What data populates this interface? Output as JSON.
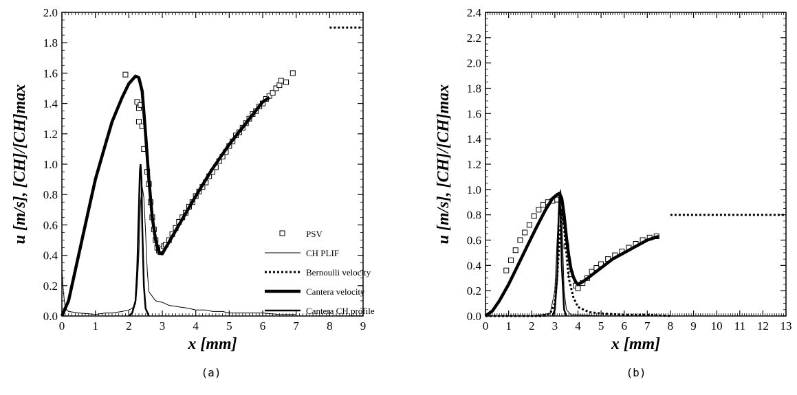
{
  "chart_data": [
    {
      "type": "line",
      "caption": "(a)",
      "xlabel": "x [mm]",
      "ylabel": "u [m/s], [CH]/[CH]max",
      "xlim": [
        0,
        9
      ],
      "ylim": [
        0,
        2.0
      ],
      "x_ticks": [
        "0",
        "1",
        "2",
        "3",
        "4",
        "5",
        "6",
        "7",
        "8",
        "9"
      ],
      "y_ticks": [
        "0.0",
        "0.2",
        "0.4",
        "0.6",
        "0.8",
        "1.0",
        "1.2",
        "1.4",
        "1.6",
        "1.8",
        "2.0"
      ],
      "legend_position": "center-right",
      "series": [
        {
          "name": "PSV",
          "style": "markers",
          "x": [
            1.9,
            2.25,
            2.3,
            2.3,
            2.35,
            2.4,
            2.45,
            2.55,
            2.6,
            2.65,
            2.7,
            2.75,
            2.8,
            2.85,
            2.9,
            2.95,
            3.0,
            3.05,
            3.1,
            3.2,
            3.3,
            3.4,
            3.5,
            3.6,
            3.7,
            3.8,
            3.9,
            4.0,
            4.1,
            4.2,
            4.3,
            4.4,
            4.5,
            4.6,
            4.7,
            4.8,
            4.9,
            5.0,
            5.1,
            5.2,
            5.3,
            5.4,
            5.5,
            5.6,
            5.7,
            5.8,
            5.9,
            6.0,
            6.1,
            6.2,
            6.3,
            6.4,
            6.5,
            6.55,
            6.7,
            6.9
          ],
          "y": [
            1.59,
            1.41,
            1.37,
            1.28,
            1.39,
            1.25,
            1.1,
            0.95,
            0.87,
            0.75,
            0.65,
            0.57,
            0.5,
            0.45,
            0.43,
            0.42,
            0.44,
            0.46,
            0.47,
            0.5,
            0.54,
            0.58,
            0.62,
            0.65,
            0.68,
            0.72,
            0.75,
            0.79,
            0.82,
            0.85,
            0.88,
            0.92,
            0.95,
            0.98,
            1.02,
            1.05,
            1.08,
            1.12,
            1.15,
            1.19,
            1.21,
            1.24,
            1.27,
            1.3,
            1.33,
            1.35,
            1.38,
            1.4,
            1.43,
            1.45,
            1.47,
            1.5,
            1.52,
            1.55,
            1.54,
            1.6
          ]
        },
        {
          "name": "CH PLIF",
          "style": "thin",
          "x": [
            0,
            0.05,
            0.1,
            0.2,
            0.5,
            0.8,
            1.0,
            1.3,
            1.5,
            1.8,
            2.0,
            2.1,
            2.2,
            2.25,
            2.3,
            2.35,
            2.4,
            2.45,
            2.5,
            2.55,
            2.6,
            2.7,
            2.8,
            3.0,
            3.2,
            3.5,
            3.8,
            4.0,
            4.3,
            4.5,
            4.8,
            5.0,
            5.5,
            6.0,
            6.5,
            7.0
          ],
          "y": [
            0.3,
            0.15,
            0.05,
            0.03,
            0.02,
            0.015,
            0.01,
            0.02,
            0.02,
            0.03,
            0.04,
            0.05,
            0.08,
            0.2,
            0.4,
            0.75,
            0.85,
            0.78,
            0.55,
            0.3,
            0.16,
            0.13,
            0.1,
            0.09,
            0.07,
            0.06,
            0.05,
            0.04,
            0.04,
            0.03,
            0.03,
            0.02,
            0.02,
            0.02,
            0.01,
            0.01
          ]
        },
        {
          "name": "Bernoulli velocity",
          "style": "dashed",
          "x": [
            8.0,
            9.0
          ],
          "y": [
            1.9,
            1.9
          ]
        },
        {
          "name": "Cantera velocity",
          "style": "thick",
          "x": [
            0,
            0.2,
            0.5,
            0.8,
            1.0,
            1.3,
            1.5,
            1.8,
            2.0,
            2.2,
            2.3,
            2.4,
            2.5,
            2.6,
            2.7,
            2.8,
            2.9,
            3.0,
            3.5,
            4.0,
            4.5,
            5.0,
            5.5,
            6.0,
            6.2
          ],
          "y": [
            0,
            0.1,
            0.4,
            0.7,
            0.9,
            1.13,
            1.28,
            1.44,
            1.53,
            1.58,
            1.57,
            1.48,
            1.2,
            0.9,
            0.65,
            0.5,
            0.42,
            0.41,
            0.6,
            0.79,
            0.97,
            1.13,
            1.27,
            1.41,
            1.44
          ]
        },
        {
          "name": "Cantera CH profile",
          "style": "medium",
          "x": [
            2.0,
            2.1,
            2.2,
            2.25,
            2.3,
            2.33,
            2.35,
            2.38,
            2.4,
            2.45,
            2.5,
            2.6
          ],
          "y": [
            0,
            0.02,
            0.1,
            0.3,
            0.7,
            0.95,
            1.0,
            0.9,
            0.6,
            0.2,
            0.05,
            0
          ]
        }
      ]
    },
    {
      "type": "line",
      "caption": "(b)",
      "xlabel": "x [mm]",
      "ylabel": "u [m/s], [CH]/[CH]max",
      "xlim": [
        0,
        13
      ],
      "ylim": [
        0,
        2.4
      ],
      "x_ticks": [
        "0",
        "1",
        "2",
        "3",
        "4",
        "5",
        "6",
        "7",
        "8",
        "9",
        "10",
        "11",
        "12",
        "13"
      ],
      "y_ticks": [
        "0.0",
        "0.2",
        "0.4",
        "0.6",
        "0.8",
        "1.0",
        "1.2",
        "1.4",
        "1.6",
        "1.8",
        "2.0",
        "2.2",
        "2.4"
      ],
      "series": [
        {
          "name": "PSV",
          "style": "markers",
          "x": [
            0.9,
            1.1,
            1.3,
            1.5,
            1.7,
            1.9,
            2.1,
            2.3,
            2.5,
            2.7,
            2.9,
            3.1,
            3.3,
            3.5,
            3.7,
            3.9,
            4.0,
            4.2,
            4.4,
            4.6,
            4.8,
            5.0,
            5.3,
            5.6,
            5.9,
            6.2,
            6.5,
            6.8,
            7.1,
            7.4
          ],
          "y": [
            0.36,
            0.44,
            0.52,
            0.6,
            0.66,
            0.72,
            0.79,
            0.84,
            0.88,
            0.9,
            0.91,
            0.92,
            0.82,
            0.55,
            0.33,
            0.24,
            0.22,
            0.26,
            0.3,
            0.35,
            0.38,
            0.41,
            0.45,
            0.48,
            0.51,
            0.54,
            0.57,
            0.6,
            0.62,
            0.63
          ]
        },
        {
          "name": "CH PLIF",
          "style": "thin",
          "x": [
            0,
            1,
            2,
            2.8,
            3.0,
            3.1,
            3.2,
            3.25,
            3.3,
            3.35,
            3.4,
            3.5,
            3.7,
            4.0,
            5.0,
            6.0,
            7.0
          ],
          "y": [
            0,
            0,
            0,
            0.02,
            0.2,
            0.6,
            0.95,
            1.0,
            0.9,
            0.5,
            0.2,
            0.05,
            0.01,
            0.01,
            0,
            0,
            0
          ]
        },
        {
          "name": "Bernoulli velocity",
          "style": "dashed",
          "x": [
            0,
            2.5,
            2.8,
            3.0,
            3.1,
            3.2,
            3.3,
            3.4,
            3.5,
            3.6,
            3.8,
            4.0,
            4.5,
            5.0,
            6.0,
            7.0,
            8.0
          ],
          "y": [
            0,
            0,
            0.02,
            0.1,
            0.3,
            0.6,
            0.85,
            0.7,
            0.5,
            0.3,
            0.15,
            0.07,
            0.03,
            0.02,
            0.01,
            0.01,
            0
          ]
        },
        {
          "name": "Bernoulli velocity",
          "style": "dashed",
          "x": [
            8.0,
            13.0
          ],
          "y": [
            0.8,
            0.8
          ]
        },
        {
          "name": "Cantera velocity",
          "style": "thick",
          "x": [
            0,
            0.3,
            0.6,
            1.0,
            1.4,
            1.8,
            2.2,
            2.6,
            2.9,
            3.1,
            3.2,
            3.3,
            3.4,
            3.5,
            3.6,
            3.7,
            3.8,
            3.9,
            4.0,
            4.2,
            4.5,
            5.0,
            5.5,
            6.0,
            6.5,
            7.0,
            7.5
          ],
          "y": [
            0,
            0.04,
            0.12,
            0.25,
            0.4,
            0.55,
            0.7,
            0.84,
            0.93,
            0.96,
            0.97,
            0.93,
            0.8,
            0.62,
            0.48,
            0.37,
            0.31,
            0.27,
            0.25,
            0.27,
            0.31,
            0.38,
            0.45,
            0.5,
            0.55,
            0.6,
            0.63
          ]
        },
        {
          "name": "Cantera CH profile",
          "style": "medium",
          "x": [
            2.9,
            3.0,
            3.1,
            3.15,
            3.2,
            3.25,
            3.3,
            3.4,
            3.5
          ],
          "y": [
            0,
            0.05,
            0.3,
            0.7,
            0.97,
            0.8,
            0.4,
            0.05,
            0
          ]
        }
      ]
    }
  ]
}
